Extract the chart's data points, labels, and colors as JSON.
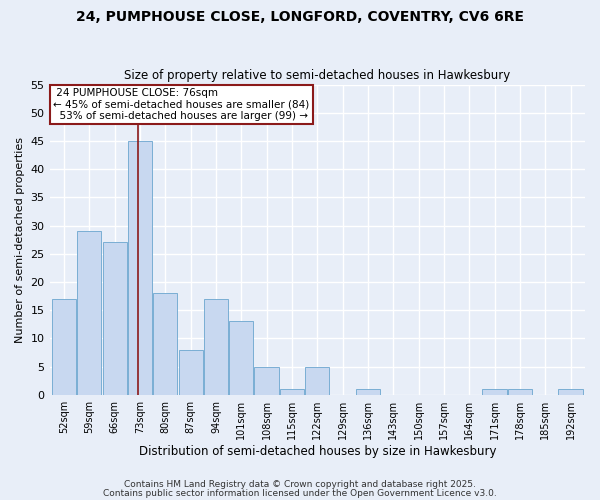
{
  "title1": "24, PUMPHOUSE CLOSE, LONGFORD, COVENTRY, CV6 6RE",
  "title2": "Size of property relative to semi-detached houses in Hawkesbury",
  "xlabel": "Distribution of semi-detached houses by size in Hawkesbury",
  "ylabel": "Number of semi-detached properties",
  "bins": [
    52,
    59,
    66,
    73,
    80,
    87,
    94,
    101,
    108,
    115,
    122,
    129,
    136,
    143,
    150,
    157,
    164,
    171,
    178,
    185,
    192
  ],
  "values": [
    17,
    29,
    27,
    45,
    18,
    8,
    17,
    13,
    5,
    1,
    5,
    0,
    1,
    0,
    0,
    0,
    0,
    1,
    1,
    0,
    1
  ],
  "bar_color": "#c8d8f0",
  "bar_edge_color": "#7aaed4",
  "property_size": 76,
  "property_label": "24 PUMPHOUSE CLOSE: 76sqm",
  "pct_smaller": 45,
  "n_smaller": 84,
  "pct_larger": 53,
  "n_larger": 99,
  "red_line_color": "#8b1a1a",
  "ylim": [
    0,
    55
  ],
  "yticks": [
    0,
    5,
    10,
    15,
    20,
    25,
    30,
    35,
    40,
    45,
    50,
    55
  ],
  "background_color": "#e8eef8",
  "grid_color": "#ffffff",
  "footer1": "Contains HM Land Registry data © Crown copyright and database right 2025.",
  "footer2": "Contains public sector information licensed under the Open Government Licence v3.0."
}
